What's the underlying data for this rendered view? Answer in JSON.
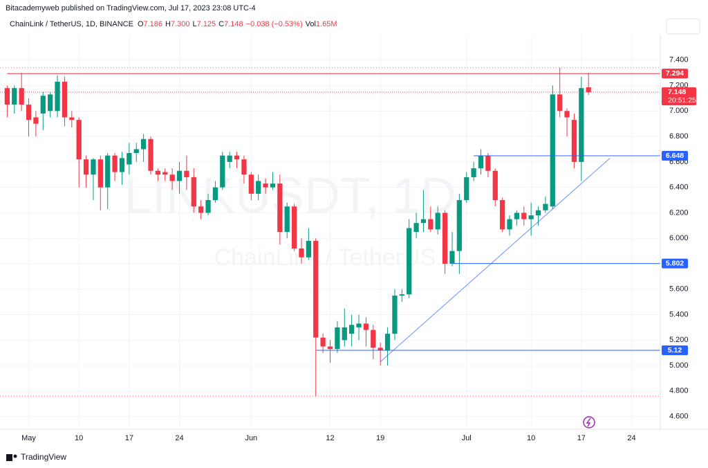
{
  "header": {
    "publisher": "Bitacademyweb published on TradingView.com, Jul 17, 2023 23:08 UTC-4",
    "symbol": "ChainLink / TetherUS, 1D, BINANCE",
    "ohlc": [
      {
        "key": "O",
        "value": "7.186"
      },
      {
        "key": "H",
        "value": "7.300"
      },
      {
        "key": "L",
        "value": "7.125"
      },
      {
        "key": "C",
        "value": "7.148"
      }
    ],
    "change": "−0.038 (−0.53%)",
    "volume_key": "Vol",
    "volume": "1.65M"
  },
  "watermark": {
    "ticker": "LINKUSDT, 1D",
    "name": "ChainLink / TetherUS"
  },
  "footer": {
    "brand": "TradingView"
  },
  "chart_data": {
    "type": "candlestick",
    "up_color": "#089981",
    "down_color": "#f23645",
    "open": [
      7.18,
      7.05,
      7.18,
      7.05,
      6.95,
      6.98,
      7.0,
      7.0,
      7.23,
      6.95,
      6.93,
      6.62,
      6.5,
      6.62,
      6.4,
      6.65,
      6.52,
      6.58,
      6.67,
      6.7,
      6.78,
      6.53,
      6.52,
      6.5,
      6.45,
      6.53,
      6.48,
      6.25,
      6.2,
      6.3,
      6.4,
      6.6,
      6.65,
      6.62,
      6.5,
      6.35,
      6.43,
      6.4,
      6.43,
      6.05,
      6.25,
      5.92,
      5.85,
      5.98,
      5.22,
      5.15,
      5.13,
      5.2,
      5.25,
      5.3,
      5.33,
      5.28,
      5.14,
      5.12,
      5.25,
      5.55,
      5.56,
      6.05,
      6.12,
      6.15,
      6.07,
      6.2,
      5.8,
      5.9,
      6.3,
      6.48,
      6.55,
      6.65,
      6.53,
      6.3,
      6.07,
      6.15,
      6.2,
      6.15,
      6.18,
      6.22,
      6.25,
      7.13,
      7.0,
      6.93,
      6.6,
      7.186
    ],
    "high": [
      7.2,
      7.2,
      7.3,
      7.1,
      7.0,
      7.15,
      7.15,
      7.28,
      7.27,
      7.0,
      6.95,
      6.65,
      6.63,
      6.65,
      6.67,
      6.67,
      6.68,
      6.75,
      6.75,
      6.82,
      6.8,
      6.55,
      6.55,
      6.55,
      6.6,
      6.65,
      6.55,
      6.3,
      6.35,
      6.45,
      6.68,
      6.68,
      6.68,
      6.65,
      6.52,
      6.5,
      6.47,
      6.52,
      6.5,
      6.28,
      6.27,
      6.0,
      6.08,
      6.0,
      5.25,
      5.2,
      5.35,
      5.45,
      5.4,
      5.4,
      5.38,
      5.32,
      5.18,
      5.3,
      5.6,
      5.6,
      6.15,
      6.2,
      6.38,
      6.25,
      6.25,
      6.22,
      6.05,
      6.35,
      6.52,
      6.6,
      6.7,
      6.67,
      6.55,
      6.32,
      6.18,
      6.22,
      6.25,
      6.28,
      6.25,
      6.33,
      7.2,
      7.34,
      7.02,
      6.98,
      7.27,
      7.3
    ],
    "low": [
      6.95,
      6.98,
      7.0,
      6.8,
      6.8,
      6.85,
      6.95,
      6.95,
      6.88,
      6.87,
      6.4,
      6.4,
      6.3,
      6.22,
      6.23,
      6.45,
      6.42,
      6.5,
      6.6,
      6.6,
      6.5,
      6.45,
      6.45,
      6.38,
      6.35,
      6.38,
      6.2,
      6.15,
      6.18,
      6.28,
      6.38,
      6.55,
      6.55,
      6.43,
      6.3,
      6.3,
      6.35,
      6.38,
      5.95,
      6.0,
      5.9,
      5.8,
      5.83,
      4.76,
      5.1,
      5.02,
      5.1,
      5.15,
      5.15,
      5.2,
      5.15,
      5.05,
      5.0,
      5.0,
      5.2,
      5.5,
      5.53,
      6.0,
      6.05,
      6.05,
      6.03,
      5.72,
      5.78,
      5.72,
      6.28,
      6.45,
      6.5,
      6.48,
      6.25,
      6.05,
      6.02,
      6.1,
      6.1,
      6.02,
      6.1,
      6.2,
      6.23,
      6.95,
      6.8,
      6.55,
      6.45,
      7.125
    ],
    "close": [
      7.05,
      7.18,
      7.05,
      6.93,
      6.9,
      7.12,
      7.13,
      7.23,
      6.95,
      6.93,
      6.62,
      6.5,
      6.62,
      6.4,
      6.65,
      6.52,
      6.63,
      6.67,
      6.7,
      6.78,
      6.53,
      6.5,
      6.5,
      6.45,
      6.53,
      6.48,
      6.25,
      6.2,
      6.3,
      6.4,
      6.65,
      6.65,
      6.62,
      6.5,
      6.35,
      6.45,
      6.4,
      6.43,
      6.05,
      6.25,
      5.92,
      5.85,
      5.98,
      5.22,
      5.15,
      5.13,
      5.3,
      5.3,
      5.32,
      5.33,
      5.28,
      5.14,
      5.12,
      5.25,
      5.55,
      5.56,
      6.08,
      6.12,
      6.15,
      6.07,
      6.2,
      5.8,
      5.9,
      6.3,
      6.48,
      6.55,
      6.65,
      6.53,
      6.3,
      6.07,
      6.15,
      6.2,
      6.15,
      6.18,
      6.22,
      6.27,
      7.13,
      7.0,
      6.95,
      6.6,
      7.18,
      7.148
    ],
    "xlim": [
      -1,
      91
    ],
    "ylim": [
      4.5,
      7.6
    ],
    "xticks": [
      {
        "value": 3,
        "label": "May"
      },
      10,
      17,
      24,
      {
        "value": 34,
        "label": "Jun"
      },
      {
        "value": 45,
        "label": "12"
      },
      {
        "value": 52,
        "label": "19"
      },
      {
        "value": 64,
        "label": "Jul"
      },
      {
        "value": 73,
        "label": "10"
      },
      {
        "value": 80,
        "label": "17"
      },
      {
        "value": 87,
        "label": "24"
      }
    ],
    "yticks": [
      {
        "value": 4.6,
        "label": "4.600"
      },
      {
        "value": 4.8,
        "label": "4.800"
      },
      {
        "value": 5.0,
        "label": "5.000"
      },
      {
        "value": 5.2,
        "label": "5.200"
      },
      {
        "value": 5.4,
        "label": "5.400"
      },
      {
        "value": 5.6,
        "label": "5.600"
      },
      {
        "value": 5.8,
        "label": "5.800"
      },
      {
        "value": 6.0,
        "label": "6.000"
      },
      {
        "value": 6.2,
        "label": "6.200"
      },
      {
        "value": 6.4,
        "label": "6.400"
      },
      {
        "value": 6.6,
        "label": "6.600"
      },
      {
        "value": 6.8,
        "label": "6.800"
      },
      {
        "value": 7.0,
        "label": "7.000"
      },
      {
        "value": 7.2,
        "label": "7.200"
      },
      {
        "value": 7.4,
        "label": "7.400"
      }
    ],
    "levels": [
      {
        "value": 7.294,
        "color": "#f23645",
        "from": 0
      },
      {
        "value": 6.648,
        "color": "#2962ff",
        "from": 65
      },
      {
        "value": 5.802,
        "color": "#2962ff",
        "from": 62
      },
      {
        "value": 5.12,
        "color": "#2962ff",
        "from": 43
      }
    ],
    "last_price": {
      "value": 7.148,
      "label": "7.148",
      "countdown": "20:51:25"
    }
  }
}
